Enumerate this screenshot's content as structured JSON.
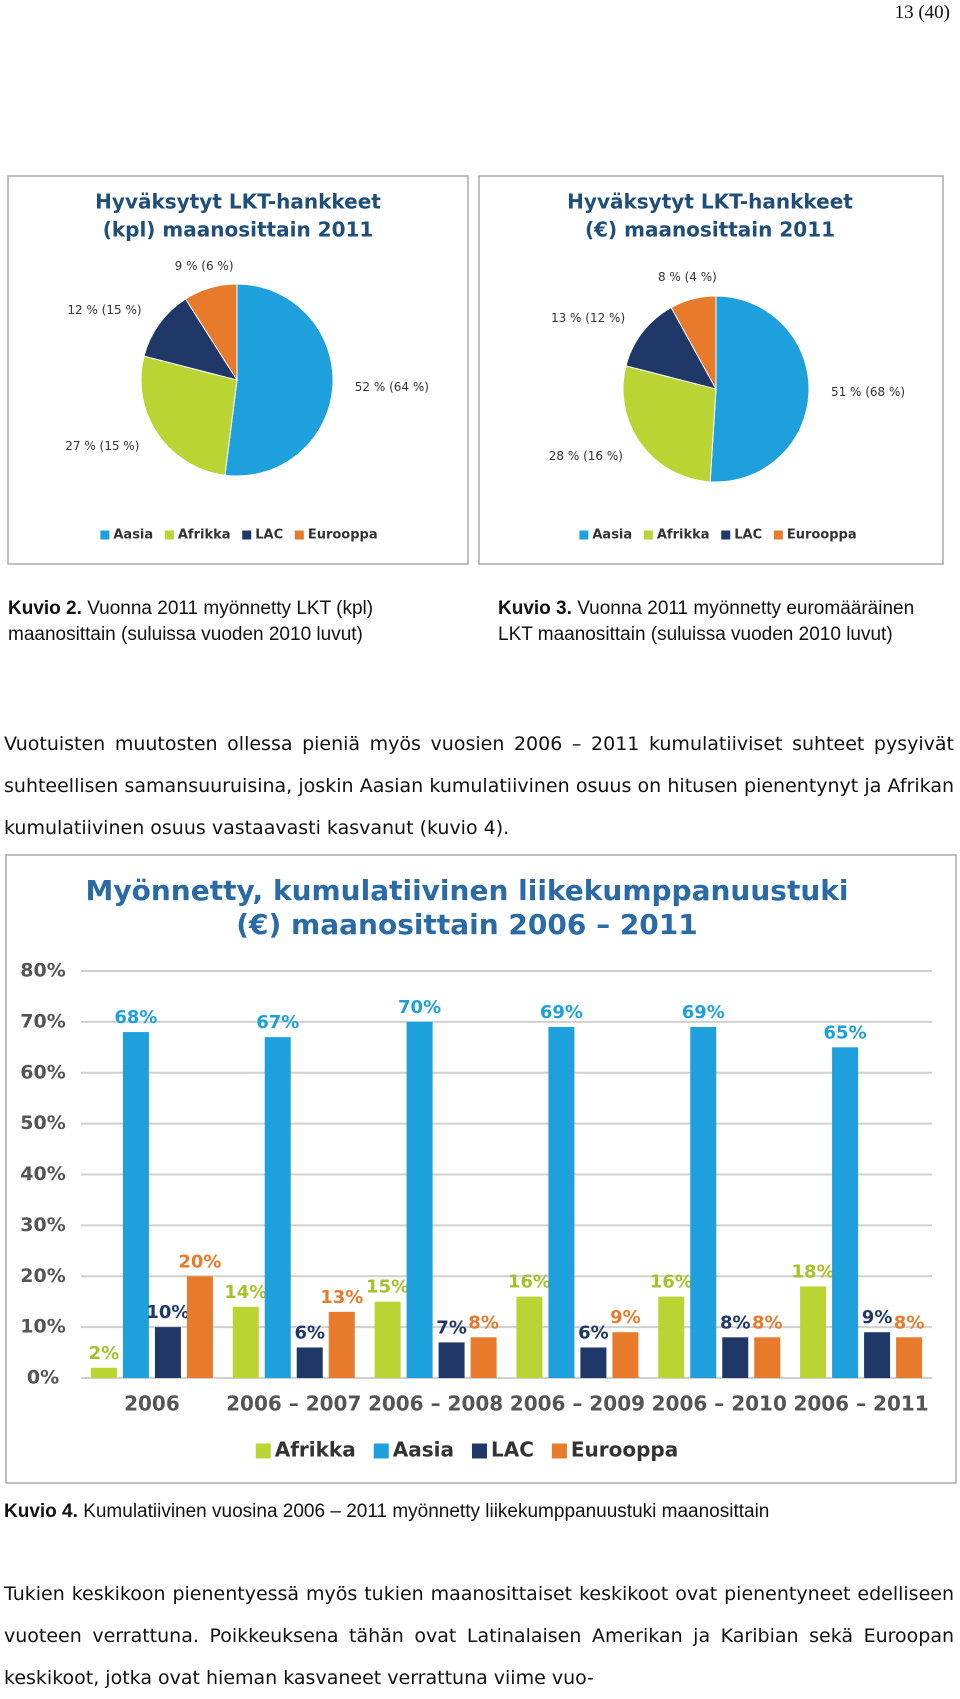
{
  "page_number": "13 (40)",
  "chart_data": [
    {
      "type": "pie",
      "title": [
        "Hyväksytyt LKT-hankkeet",
        "(kpl) maanosittain 2011"
      ],
      "categories": [
        "Aasia",
        "Afrikka",
        "LAC",
        "Eurooppa"
      ],
      "values": [
        52,
        27,
        12,
        9
      ],
      "value_labels": [
        "52 % (64 %)",
        "27 % (15 %)",
        "12 % (15 %)",
        "9 % (6 %)"
      ],
      "colors": [
        "#1ea0dc",
        "#b9d433",
        "#1f3868",
        "#e87a2c"
      ],
      "legend": "bottom"
    },
    {
      "type": "pie",
      "title": [
        "Hyväksytyt LKT-hankkeet",
        "(€) maanosittain 2011"
      ],
      "categories": [
        "Aasia",
        "Afrikka",
        "LAC",
        "Eurooppa"
      ],
      "values": [
        51,
        28,
        13,
        8
      ],
      "value_labels": [
        "51 % (68 %)",
        "28 % (16 %)",
        "13 % (12 %)",
        "8 % (4 %)"
      ],
      "colors": [
        "#1ea0dc",
        "#b9d433",
        "#1f3868",
        "#e87a2c"
      ],
      "legend": "bottom"
    },
    {
      "type": "bar",
      "title": [
        "Myönnetty, kumulatiivinen liikekumppanuustuki",
        "(€) maanosittain 2006 – 2011"
      ],
      "categories": [
        "2006",
        "2006 – 2007",
        "2006 – 2008",
        "2006 – 2009",
        "2006 – 2010",
        "2006 – 2011"
      ],
      "series": [
        {
          "name": "Afrikka",
          "color": "#b9d433",
          "values": [
            2,
            14,
            15,
            16,
            16,
            18
          ],
          "value_labels": [
            "2%",
            "14%",
            "15%",
            "16%",
            "16%",
            "18%"
          ]
        },
        {
          "name": "Aasia",
          "color": "#1ea0dc",
          "values": [
            68,
            67,
            70,
            69,
            69,
            65
          ],
          "value_labels": [
            "68%",
            "67%",
            "70%",
            "69%",
            "69%",
            "65%"
          ]
        },
        {
          "name": "LAC",
          "color": "#1f3868",
          "values": [
            10,
            6,
            7,
            6,
            8,
            9
          ],
          "value_labels": [
            "10%",
            "6%",
            "7%",
            "6%",
            "8%",
            "9%"
          ]
        },
        {
          "name": "Eurooppa",
          "color": "#e87a2c",
          "values": [
            20,
            13,
            8,
            9,
            8,
            8
          ],
          "value_labels": [
            "20%",
            "13%",
            "8%",
            "9%",
            "8%",
            "8%"
          ]
        }
      ],
      "ylim": [
        0,
        80
      ],
      "yticks": [
        {
          "value": 0,
          "label": "0%"
        },
        {
          "value": 10,
          "label": "10%"
        },
        {
          "value": 20,
          "label": "20%"
        },
        {
          "value": 30,
          "label": "30%"
        },
        {
          "value": 40,
          "label": "40%"
        },
        {
          "value": 50,
          "label": "50%"
        },
        {
          "value": 60,
          "label": "60%"
        },
        {
          "value": 70,
          "label": "70%"
        },
        {
          "value": 80,
          "label": "80%"
        }
      ],
      "grid": true,
      "legend": "bottom"
    }
  ],
  "captions": [
    {
      "label": "Kuvio 2.",
      "text": "Vuonna 2011 myönnetty LKT (kpl) maanosittain (suluissa vuoden 2010 luvut)"
    },
    {
      "label": "Kuvio 3.",
      "text": "Vuonna 2011 myönnetty euromääräinen LKT maanosittain (suluissa vuoden 2010 luvut)"
    },
    {
      "label": "Kuvio 4.",
      "text": "Kumulatiivinen vuosina 2006 – 2011 myönnetty liikekumppanuustuki maanosittain"
    }
  ],
  "paragraphs": [
    "Vuotuisten muutosten ollessa pieniä myös vuosien 2006 – 2011 kumulatiiviset suhteet pysyivät suhteellisen samansuuruisina, joskin Aasian kumulatiivinen osuus on hitusen pienentynyt ja Afrikan kumulatiivinen osuus vastaavasti kasvanut (kuvio 4).",
    "Tukien keskikoon pienentyessä myös tukien maanosittaiset keskikoot ovat pienentyneet edelliseen vuoteen verrattuna. Poikkeuksena tähän ovat Latinalaisen Amerikan ja Karibian sekä Euroopan keskikoot, jotka ovat hieman kasvaneet verrattuna viime vuo-"
  ]
}
